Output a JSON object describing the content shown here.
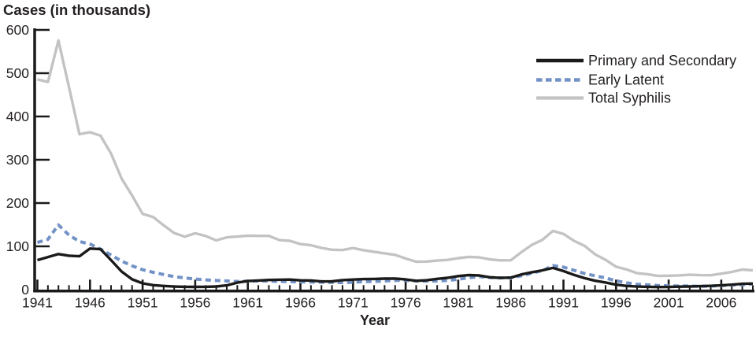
{
  "chart_data": {
    "type": "line",
    "title": "Cases (in thousands)",
    "xlabel": "Year",
    "ylabel": "",
    "x_range": [
      1941,
      2009
    ],
    "ylim": [
      0,
      600
    ],
    "y_ticks": [
      0,
      100,
      200,
      300,
      400,
      500,
      600
    ],
    "x_major_tick_labels": [
      1941,
      1946,
      1951,
      1956,
      1961,
      1966,
      1971,
      1976,
      1981,
      1986,
      1991,
      1996,
      2001,
      2006
    ],
    "x_minor_tick_step": 1,
    "grid": false,
    "legend_position": "top-right",
    "axis_color": "#1a1a1a",
    "series": [
      {
        "name": "Primary and Secondary",
        "color": "#1a1a1a",
        "style": "solid",
        "values": [
          68.2,
          75.3,
          82.2,
          78.4,
          77.0,
          94.9,
          93.5,
          68.2,
          41.9,
          23.9,
          14.5,
          10.4,
          8.6,
          7.1,
          6.5,
          6.4,
          6.6,
          7.2,
          9.8,
          16.1,
          19.9,
          21.1,
          22.3,
          23.0,
          23.3,
          21.4,
          21.1,
          19.0,
          19.1,
          22.0,
          23.3,
          24.4,
          24.8,
          25.4,
          25.6,
          23.7,
          20.4,
          21.7,
          24.9,
          27.2,
          31.3,
          33.6,
          32.7,
          28.6,
          27.1,
          27.9,
          35.1,
          40.1,
          44.5,
          50.2,
          42.9,
          34.0,
          26.5,
          20.6,
          16.5,
          11.4,
          8.6,
          7.0,
          6.6,
          6.0,
          6.1,
          6.9,
          7.2,
          8.0,
          8.7,
          9.8,
          11.5,
          13.5,
          14.0
        ]
      },
      {
        "name": "Early Latent",
        "color": "#7292c6",
        "style": "dashed",
        "values": [
          109.0,
          116.2,
          149.4,
          126.0,
          111.0,
          105.5,
          93.5,
          80.0,
          66.0,
          55.0,
          46.0,
          40.0,
          35.0,
          30.0,
          27.0,
          24.5,
          22.5,
          21.0,
          20.0,
          19.0,
          19.5,
          20.0,
          20.0,
          19.0,
          18.5,
          18.0,
          17.5,
          17.0,
          16.5,
          16.3,
          17.0,
          18.5,
          19.0,
          20.0,
          21.0,
          21.5,
          20.0,
          19.5,
          20.0,
          21.0,
          24.0,
          27.5,
          30.0,
          28.0,
          27.0,
          27.5,
          32.0,
          38.0,
          44.0,
          55.4,
          52.0,
          44.7,
          37.3,
          32.0,
          27.0,
          20.3,
          15.6,
          12.3,
          10.9,
          9.5,
          8.7,
          8.4,
          8.3,
          7.7,
          8.2,
          9.2,
          10.8,
          11.5,
          13.1
        ]
      },
      {
        "name": "Total Syphilis",
        "color": "#c3c3c5",
        "style": "solid",
        "values": [
          485.6,
          479.6,
          575.6,
          467.8,
          359.1,
          363.6,
          355.6,
          314.3,
          256.5,
          217.6,
          174.9,
          167.8,
          148.6,
          130.7,
          122.4,
          130.2,
          123.8,
          113.9,
          120.8,
          122.5,
          124.7,
          124.1,
          124.2,
          114.3,
          112.8,
          105.2,
          102.6,
          96.3,
          92.2,
          91.4,
          96.0,
          91.1,
          87.5,
          83.8,
          80.4,
          71.8,
          64.6,
          64.9,
          67.0,
          68.8,
          72.8,
          75.6,
          74.6,
          69.9,
          67.6,
          67.8,
          86.5,
          103.4,
          115.1,
          135.6,
          128.7,
          112.8,
          101.3,
          81.7,
          69.0,
          53.0,
          46.5,
          38.0,
          35.6,
          31.6,
          32.2,
          32.9,
          34.3,
          33.4,
          33.3,
          36.9,
          40.9,
          46.3,
          44.8
        ]
      }
    ]
  }
}
